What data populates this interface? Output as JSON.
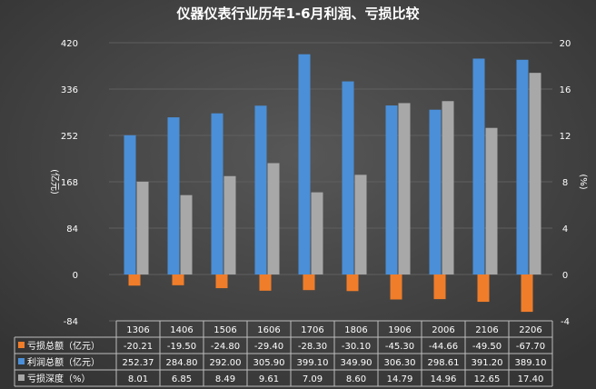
{
  "chart_data": {
    "type": "bar",
    "title": "仪器仪表行业历年1-6月利润、亏损比较",
    "y_left_label": "(亿元)",
    "y_right_label": "(%)",
    "y_left_ticks": [
      "420",
      "336",
      "252",
      "168",
      "84",
      "0",
      "-84"
    ],
    "y_right_ticks": [
      "20",
      "16",
      "12",
      "8",
      "4",
      "0",
      "-4"
    ],
    "y_left_range": [
      -84,
      420
    ],
    "y_right_range": [
      -4,
      20
    ],
    "categories": [
      "1306",
      "1406",
      "1506",
      "1606",
      "1706",
      "1806",
      "1906",
      "2006",
      "2106",
      "2206"
    ],
    "series": [
      {
        "name": "亏损总额（亿元）",
        "axis": "left",
        "color": "#f07d2a",
        "values": [
          -20.21,
          -19.5,
          -24.8,
          -29.4,
          -28.3,
          -30.1,
          -45.3,
          -44.66,
          -49.5,
          -67.7
        ],
        "labels": [
          "-20.21",
          "-19.50",
          "-24.80",
          "-29.40",
          "-28.30",
          "-30.10",
          "-45.30",
          "-44.66",
          "-49.50",
          "-67.70"
        ]
      },
      {
        "name": "利润总额（亿元）",
        "axis": "left",
        "color": "#4a8fd8",
        "values": [
          252.37,
          284.8,
          292.0,
          305.9,
          399.1,
          349.9,
          306.3,
          298.61,
          391.2,
          389.1
        ],
        "labels": [
          "252.37",
          "284.80",
          "292.00",
          "305.90",
          "399.10",
          "349.90",
          "306.30",
          "298.61",
          "391.20",
          "389.10"
        ]
      },
      {
        "name": "亏损深度（%）",
        "axis": "right",
        "color": "#a8a8a8",
        "values": [
          8.01,
          6.85,
          8.49,
          9.61,
          7.09,
          8.6,
          14.79,
          14.96,
          12.65,
          17.4
        ],
        "labels": [
          "8.01",
          "6.85",
          "8.49",
          "9.61",
          "7.09",
          "8.60",
          "14.79",
          "14.96",
          "12.65",
          "17.40"
        ]
      }
    ],
    "grid": true,
    "legend": "table-below"
  }
}
